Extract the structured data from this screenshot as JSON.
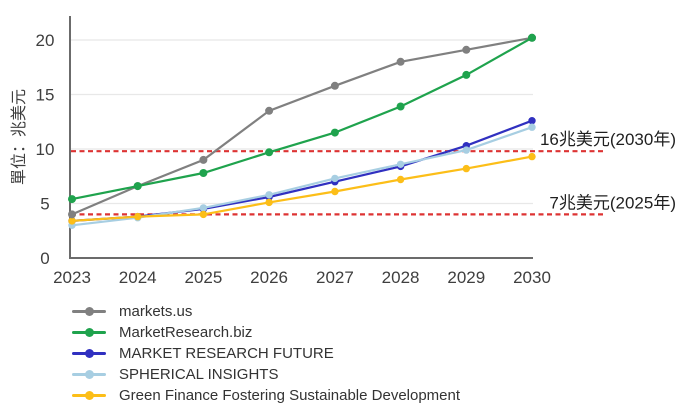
{
  "chart_data": {
    "type": "line",
    "title": "",
    "ylabel": "單位：兆美元",
    "x": [
      2023,
      2024,
      2025,
      2026,
      2027,
      2028,
      2029,
      2030
    ],
    "ylim": [
      0,
      21
    ],
    "y_ticks": [
      0,
      5,
      10,
      15,
      20
    ],
    "grid": true,
    "legend_position": "bottom-left",
    "series": [
      {
        "name": "markets.us",
        "color": "#808080",
        "values": [
          4.0,
          6.6,
          9.0,
          13.5,
          15.8,
          18.0,
          19.1,
          20.2
        ]
      },
      {
        "name": "MarketResearch.biz",
        "color": "#1FA34D",
        "values": [
          5.4,
          6.6,
          7.8,
          9.7,
          11.5,
          13.9,
          16.8,
          20.2
        ]
      },
      {
        "name": "MARKET RESEARCH FUTURE",
        "color": "#3030C0",
        "values": [
          3.4,
          3.8,
          4.5,
          5.6,
          7.0,
          8.4,
          10.3,
          12.6
        ]
      },
      {
        "name": "SPHERICAL INSIGHTS",
        "color": "#A7CEE2",
        "values": [
          3.0,
          3.7,
          4.6,
          5.8,
          7.3,
          8.6,
          9.9,
          12.0
        ]
      },
      {
        "name": "Green Finance Fostering Sustainable Development",
        "color": "#FCBE18",
        "values": [
          3.4,
          3.8,
          4.0,
          5.1,
          6.1,
          7.2,
          8.2,
          9.3
        ]
      }
    ],
    "reference_lines": [
      {
        "y": 9.8,
        "label": "16兆美元(2030年)",
        "color": "#DD3333",
        "style": "dashed"
      },
      {
        "y": 4.0,
        "label": "7兆美元(2025年)",
        "color": "#DD3333",
        "style": "dashed"
      }
    ]
  }
}
